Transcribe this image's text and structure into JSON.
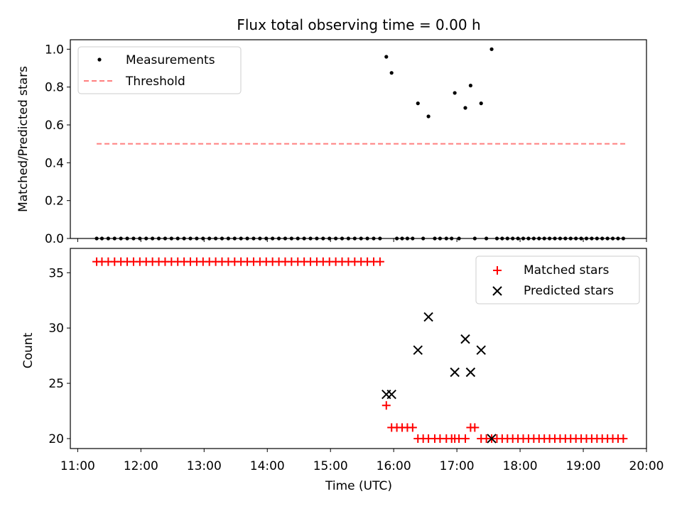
{
  "chart_data": [
    {
      "type": "scatter",
      "title": "Flux total observing time = 0.00 h",
      "xlabel": "",
      "ylabel": "Matched/Predicted stars",
      "ylim": [
        0,
        1.05
      ],
      "yticks": [
        "0.0",
        "0.2",
        "0.4",
        "0.6",
        "0.8",
        "1.0"
      ],
      "legend_position": "upper-left",
      "series": [
        {
          "name": "Measurements",
          "marker": "dot",
          "color": "#000000",
          "points": [
            [
              "11:18",
              0
            ],
            [
              "11:23",
              0
            ],
            [
              "11:29",
              0
            ],
            [
              "11:35",
              0
            ],
            [
              "11:41",
              0
            ],
            [
              "11:47",
              0
            ],
            [
              "11:53",
              0
            ],
            [
              "11:59",
              0
            ],
            [
              "12:05",
              0
            ],
            [
              "12:11",
              0
            ],
            [
              "12:17",
              0
            ],
            [
              "12:23",
              0
            ],
            [
              "12:29",
              0
            ],
            [
              "12:35",
              0
            ],
            [
              "12:41",
              0
            ],
            [
              "12:47",
              0
            ],
            [
              "12:53",
              0
            ],
            [
              "12:59",
              0
            ],
            [
              "13:05",
              0
            ],
            [
              "13:11",
              0
            ],
            [
              "13:17",
              0
            ],
            [
              "13:23",
              0
            ],
            [
              "13:29",
              0
            ],
            [
              "13:35",
              0
            ],
            [
              "13:41",
              0
            ],
            [
              "13:47",
              0
            ],
            [
              "13:53",
              0
            ],
            [
              "13:59",
              0
            ],
            [
              "14:05",
              0
            ],
            [
              "14:11",
              0
            ],
            [
              "14:17",
              0
            ],
            [
              "14:23",
              0
            ],
            [
              "14:29",
              0
            ],
            [
              "14:35",
              0
            ],
            [
              "14:41",
              0
            ],
            [
              "14:47",
              0
            ],
            [
              "14:53",
              0
            ],
            [
              "14:59",
              0
            ],
            [
              "15:05",
              0
            ],
            [
              "15:11",
              0
            ],
            [
              "15:17",
              0
            ],
            [
              "15:23",
              0
            ],
            [
              "15:29",
              0
            ],
            [
              "15:35",
              0
            ],
            [
              "15:41",
              0
            ],
            [
              "15:47",
              0
            ],
            [
              "15:53",
              0.96
            ],
            [
              "15:58",
              0.875
            ],
            [
              "16:03",
              0
            ],
            [
              "16:08",
              0
            ],
            [
              "16:13",
              0
            ],
            [
              "16:18",
              0
            ],
            [
              "16:23",
              0.714
            ],
            [
              "16:28",
              0
            ],
            [
              "16:33",
              0.645
            ],
            [
              "16:39",
              0
            ],
            [
              "16:44",
              0
            ],
            [
              "16:50",
              0
            ],
            [
              "16:55",
              0
            ],
            [
              "16:58",
              0.769
            ],
            [
              "17:02",
              0
            ],
            [
              "17:08",
              0.69
            ],
            [
              "17:13",
              0.808
            ],
            [
              "17:17",
              0
            ],
            [
              "17:23",
              0.714
            ],
            [
              "17:28",
              0
            ],
            [
              "17:33",
              1.0
            ],
            [
              "17:38",
              0
            ],
            [
              "17:43",
              0
            ],
            [
              "17:48",
              0
            ],
            [
              "17:53",
              0
            ],
            [
              "17:58",
              0
            ],
            [
              "18:03",
              0
            ],
            [
              "18:08",
              0
            ],
            [
              "18:13",
              0
            ],
            [
              "18:18",
              0
            ],
            [
              "18:23",
              0
            ],
            [
              "18:28",
              0
            ],
            [
              "18:33",
              0
            ],
            [
              "18:38",
              0
            ],
            [
              "18:43",
              0
            ],
            [
              "18:48",
              0
            ],
            [
              "18:53",
              0
            ],
            [
              "18:58",
              0
            ],
            [
              "19:03",
              0
            ],
            [
              "19:08",
              0
            ],
            [
              "19:13",
              0
            ],
            [
              "19:18",
              0
            ],
            [
              "19:23",
              0
            ],
            [
              "19:28",
              0
            ],
            [
              "19:33",
              0
            ],
            [
              "19:38",
              0
            ]
          ]
        },
        {
          "name": "Threshold",
          "line": "dashed",
          "color": "#ff7f7f",
          "points": [
            [
              "11:18",
              0.5
            ],
            [
              "19:40",
              0.5
            ]
          ]
        }
      ]
    },
    {
      "type": "scatter",
      "title": "",
      "xlabel": "Time (UTC)",
      "ylabel": "Count",
      "ylim": [
        19.1,
        37.2
      ],
      "yticks": [
        "20",
        "25",
        "30",
        "35"
      ],
      "xticks": [
        "11:00",
        "12:00",
        "13:00",
        "14:00",
        "15:00",
        "16:00",
        "17:00",
        "18:00",
        "19:00",
        "20:00"
      ],
      "xlim": [
        "10:53",
        "20:00"
      ],
      "legend_position": "upper-right",
      "series": [
        {
          "name": "Matched stars",
          "marker": "plus",
          "color": "#ff0000",
          "points": [
            [
              "11:18",
              36
            ],
            [
              "11:23",
              36
            ],
            [
              "11:29",
              36
            ],
            [
              "11:35",
              36
            ],
            [
              "11:41",
              36
            ],
            [
              "11:47",
              36
            ],
            [
              "11:53",
              36
            ],
            [
              "11:59",
              36
            ],
            [
              "12:05",
              36
            ],
            [
              "12:11",
              36
            ],
            [
              "12:17",
              36
            ],
            [
              "12:23",
              36
            ],
            [
              "12:29",
              36
            ],
            [
              "12:35",
              36
            ],
            [
              "12:41",
              36
            ],
            [
              "12:47",
              36
            ],
            [
              "12:53",
              36
            ],
            [
              "12:59",
              36
            ],
            [
              "13:05",
              36
            ],
            [
              "13:11",
              36
            ],
            [
              "13:17",
              36
            ],
            [
              "13:23",
              36
            ],
            [
              "13:29",
              36
            ],
            [
              "13:35",
              36
            ],
            [
              "13:41",
              36
            ],
            [
              "13:47",
              36
            ],
            [
              "13:53",
              36
            ],
            [
              "13:59",
              36
            ],
            [
              "14:05",
              36
            ],
            [
              "14:11",
              36
            ],
            [
              "14:17",
              36
            ],
            [
              "14:23",
              36
            ],
            [
              "14:29",
              36
            ],
            [
              "14:35",
              36
            ],
            [
              "14:41",
              36
            ],
            [
              "14:47",
              36
            ],
            [
              "14:53",
              36
            ],
            [
              "14:59",
              36
            ],
            [
              "15:05",
              36
            ],
            [
              "15:11",
              36
            ],
            [
              "15:17",
              36
            ],
            [
              "15:23",
              36
            ],
            [
              "15:29",
              36
            ],
            [
              "15:35",
              36
            ],
            [
              "15:41",
              36
            ],
            [
              "15:47",
              36
            ],
            [
              "15:53",
              23
            ],
            [
              "15:58",
              21
            ],
            [
              "16:03",
              21
            ],
            [
              "16:08",
              21
            ],
            [
              "16:13",
              21
            ],
            [
              "16:18",
              21
            ],
            [
              "16:23",
              20
            ],
            [
              "16:28",
              20
            ],
            [
              "16:33",
              20
            ],
            [
              "16:39",
              20
            ],
            [
              "16:44",
              20
            ],
            [
              "16:50",
              20
            ],
            [
              "16:55",
              20
            ],
            [
              "16:58",
              20
            ],
            [
              "17:02",
              20
            ],
            [
              "17:08",
              20
            ],
            [
              "17:13",
              21
            ],
            [
              "17:17",
              21
            ],
            [
              "17:23",
              20
            ],
            [
              "17:28",
              20
            ],
            [
              "17:33",
              20
            ],
            [
              "17:38",
              20
            ],
            [
              "17:43",
              20
            ],
            [
              "17:48",
              20
            ],
            [
              "17:53",
              20
            ],
            [
              "17:58",
              20
            ],
            [
              "18:03",
              20
            ],
            [
              "18:08",
              20
            ],
            [
              "18:13",
              20
            ],
            [
              "18:18",
              20
            ],
            [
              "18:23",
              20
            ],
            [
              "18:28",
              20
            ],
            [
              "18:33",
              20
            ],
            [
              "18:38",
              20
            ],
            [
              "18:43",
              20
            ],
            [
              "18:48",
              20
            ],
            [
              "18:53",
              20
            ],
            [
              "18:58",
              20
            ],
            [
              "19:03",
              20
            ],
            [
              "19:08",
              20
            ],
            [
              "19:13",
              20
            ],
            [
              "19:18",
              20
            ],
            [
              "19:23",
              20
            ],
            [
              "19:28",
              20
            ],
            [
              "19:33",
              20
            ],
            [
              "19:38",
              20
            ]
          ]
        },
        {
          "name": "Predicted stars",
          "marker": "x",
          "color": "#000000",
          "points": [
            [
              "15:53",
              24
            ],
            [
              "15:58",
              24
            ],
            [
              "16:23",
              28
            ],
            [
              "16:33",
              31
            ],
            [
              "16:58",
              26
            ],
            [
              "17:08",
              29
            ],
            [
              "17:13",
              26
            ],
            [
              "17:23",
              28
            ],
            [
              "17:33",
              20
            ]
          ]
        }
      ]
    }
  ]
}
